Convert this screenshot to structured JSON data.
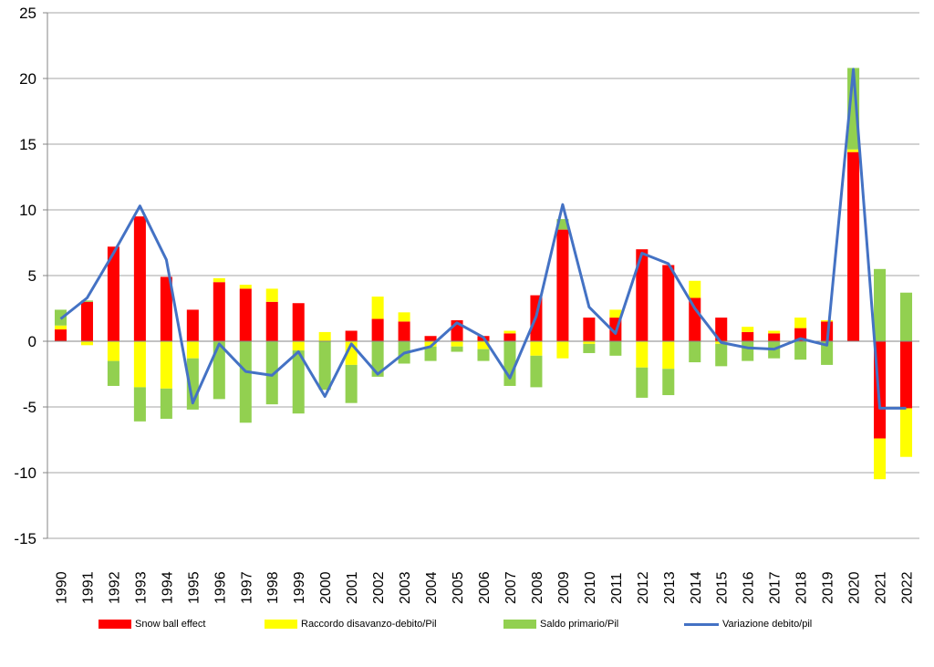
{
  "chart_data": {
    "type": "bar",
    "stacked": true,
    "title": "",
    "xlabel": "",
    "ylabel": "",
    "ylim": [
      -15,
      25
    ],
    "yticks": [
      -15,
      -10,
      -5,
      0,
      5,
      10,
      15,
      20,
      25
    ],
    "grid": "horizontal",
    "legend_position": "bottom",
    "categories": [
      "1990",
      "1991",
      "1992",
      "1993",
      "1994",
      "1995",
      "1996",
      "1997",
      "1998",
      "1999",
      "2000",
      "2001",
      "2002",
      "2003",
      "2004",
      "2005",
      "2006",
      "2007",
      "2008",
      "2009",
      "2010",
      "2011",
      "2012",
      "2013",
      "2014",
      "2015",
      "2016",
      "2017",
      "2018",
      "2019",
      "2020",
      "2021",
      "2022"
    ],
    "series": [
      {
        "name": "Snow ball effect",
        "kind": "bar",
        "color": "#ff0000",
        "values": [
          0.9,
          3.0,
          7.2,
          9.5,
          4.9,
          2.4,
          4.5,
          4.0,
          3.0,
          2.9,
          0.0,
          0.8,
          1.7,
          1.5,
          0.4,
          1.6,
          0.4,
          0.6,
          3.5,
          8.5,
          1.8,
          1.8,
          7.0,
          5.8,
          3.3,
          1.8,
          0.7,
          0.6,
          1.0,
          1.5,
          14.4,
          -7.4,
          -5.1
        ]
      },
      {
        "name": "Raccordo disavanzo-debito/Pil",
        "kind": "bar",
        "color": "#ffff00",
        "values": [
          0.3,
          -0.3,
          -1.5,
          -3.5,
          -3.6,
          -1.3,
          0.3,
          0.3,
          1.0,
          -0.7,
          0.7,
          -1.8,
          1.7,
          0.7,
          -0.4,
          -0.4,
          -0.6,
          0.2,
          -1.1,
          -1.3,
          -0.2,
          0.6,
          -2.0,
          -2.1,
          1.3,
          -0.2,
          0.4,
          0.2,
          0.8,
          0.1,
          0.2,
          -3.1,
          -3.7
        ]
      },
      {
        "name": "Saldo primario/Pil",
        "kind": "bar",
        "color": "#92d050",
        "values": [
          1.2,
          0.1,
          -1.9,
          -2.6,
          -2.3,
          -3.9,
          -4.4,
          -6.2,
          -4.8,
          -4.8,
          -3.7,
          -2.9,
          -2.7,
          -1.7,
          -1.1,
          -0.4,
          -0.9,
          -3.4,
          -2.4,
          0.8,
          -0.7,
          -1.1,
          -2.3,
          -2.0,
          -1.6,
          -1.7,
          -1.5,
          -1.3,
          -1.4,
          -1.8,
          6.2,
          5.5,
          3.7
        ]
      },
      {
        "name": "Variazione debito/pil",
        "kind": "line",
        "color": "#4472c4",
        "values": [
          1.7,
          3.3,
          6.7,
          10.3,
          6.2,
          -4.7,
          -0.2,
          -2.3,
          -2.6,
          -0.8,
          -4.2,
          -0.2,
          -2.5,
          -0.9,
          -0.4,
          1.4,
          0.3,
          -2.8,
          1.9,
          10.4,
          2.6,
          0.6,
          6.7,
          5.9,
          2.5,
          -0.1,
          -0.5,
          -0.6,
          0.2,
          -0.3,
          20.7,
          -5.1,
          -5.1
        ]
      }
    ]
  }
}
